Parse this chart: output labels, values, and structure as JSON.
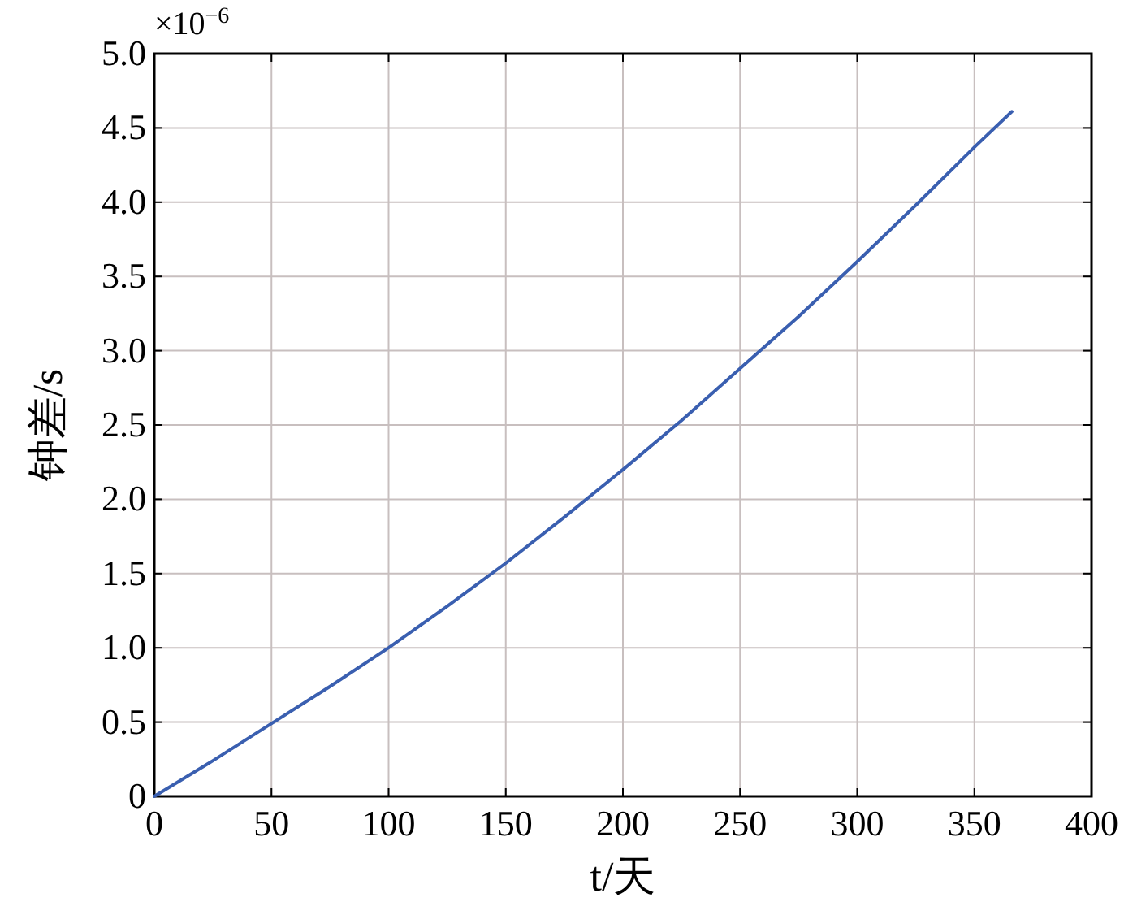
{
  "chart_data": {
    "type": "line",
    "xlabel": "t/天",
    "ylabel": "钟差/s",
    "annotations": [
      "×10$^{−6}$"
    ],
    "x": [
      0,
      25,
      50,
      75,
      100,
      125,
      150,
      175,
      200,
      225,
      250,
      275,
      300,
      325,
      350,
      366
    ],
    "series": [
      {
        "color": "#3a5fb0",
        "values": [
          0,
          0.24,
          0.49,
          0.74,
          1.0,
          1.28,
          1.57,
          1.88,
          2.2,
          2.53,
          2.88,
          3.23,
          3.6,
          3.98,
          4.37,
          4.61
        ]
      }
    ],
    "xlim": [
      0,
      400
    ],
    "xticks": [
      0,
      50,
      100,
      150,
      200,
      250,
      300,
      350,
      400
    ],
    "ylim": [
      0,
      5
    ],
    "yticks": [
      0,
      {
        "value": 0.5,
        "label": "0.5"
      },
      {
        "value": 1,
        "label": "1.0"
      },
      {
        "value": 1.5,
        "label": "1.5"
      },
      {
        "value": 2,
        "label": "2.0"
      },
      {
        "value": 2.5,
        "label": "2.5"
      },
      {
        "value": 3,
        "label": "3.0"
      },
      {
        "value": 3.5,
        "label": "3.5"
      },
      {
        "value": 4,
        "label": "4.0"
      },
      {
        "value": 4.5,
        "label": "4.5"
      },
      {
        "value": 5,
        "label": "5.0"
      }
    ],
    "grid": true,
    "marker": "none",
    "line_style": "solid"
  }
}
